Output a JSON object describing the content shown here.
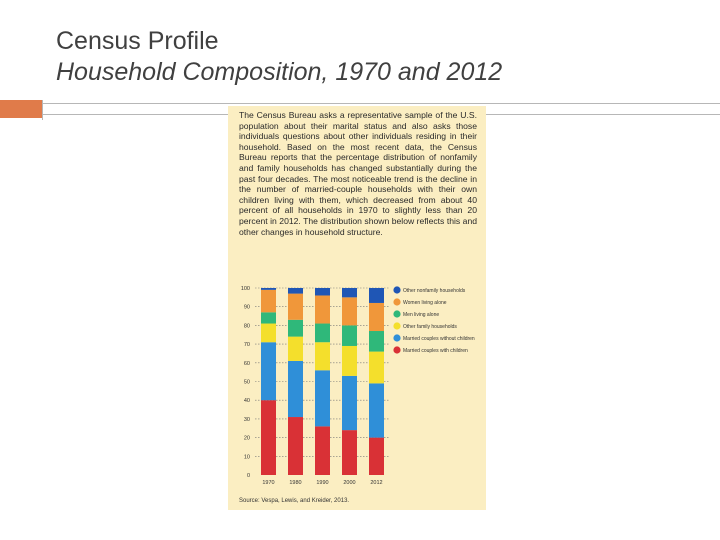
{
  "slide": {
    "title_line1": "Census Profile",
    "title_line2": "Household Composition, 1970 and 2012"
  },
  "figure": {
    "paragraph": "The Census Bureau asks a representative sample of the U.S. population about their marital status and also asks those individuals questions about other individuals residing in their household. Based on the most recent data, the Census Bureau reports that the percentage distribution of nonfamily and family households has changed substantially during the past four decades. The most noticeable trend is the decline in the number of married-couple households with their own children living with them, which decreased from about 40 percent of all households in 1970 to slightly less than 20 percent in 2012. The distribution shown below reflects this and other changes in household structure.",
    "source": "Source: Vespa, Lewis, and Kreider, 2013."
  },
  "colors": {
    "background_panel": "#fbeec2",
    "accent": "#e07b4a"
  },
  "chart_data": {
    "type": "bar",
    "stacked": true,
    "categories": [
      "1970",
      "1980",
      "1990",
      "2000",
      "2012"
    ],
    "ylim": [
      0,
      100
    ],
    "yticks": [
      "0",
      "10",
      "20",
      "30",
      "40",
      "50",
      "60",
      "70",
      "80",
      "90",
      "100"
    ],
    "grid": "dotted horizontal lines",
    "legend_placement": "right",
    "series": [
      {
        "name": "Married couples with children",
        "color": "#d93136",
        "values": [
          40,
          31,
          26,
          24,
          20
        ]
      },
      {
        "name": "Married couples without children",
        "color": "#2f8fd8",
        "values": [
          31,
          30,
          30,
          29,
          29
        ]
      },
      {
        "name": "Other family households",
        "color": "#f4df2c",
        "values": [
          10,
          13,
          15,
          16,
          17
        ]
      },
      {
        "name": "Men living alone",
        "color": "#2fb87a",
        "values": [
          6,
          9,
          10,
          11,
          11
        ]
      },
      {
        "name": "Women living alone",
        "color": "#f0973a",
        "values": [
          12,
          14,
          15,
          15,
          15
        ]
      },
      {
        "name": "Other nonfamily households",
        "color": "#1f56b5",
        "values": [
          1,
          3,
          4,
          5,
          8
        ]
      }
    ]
  }
}
